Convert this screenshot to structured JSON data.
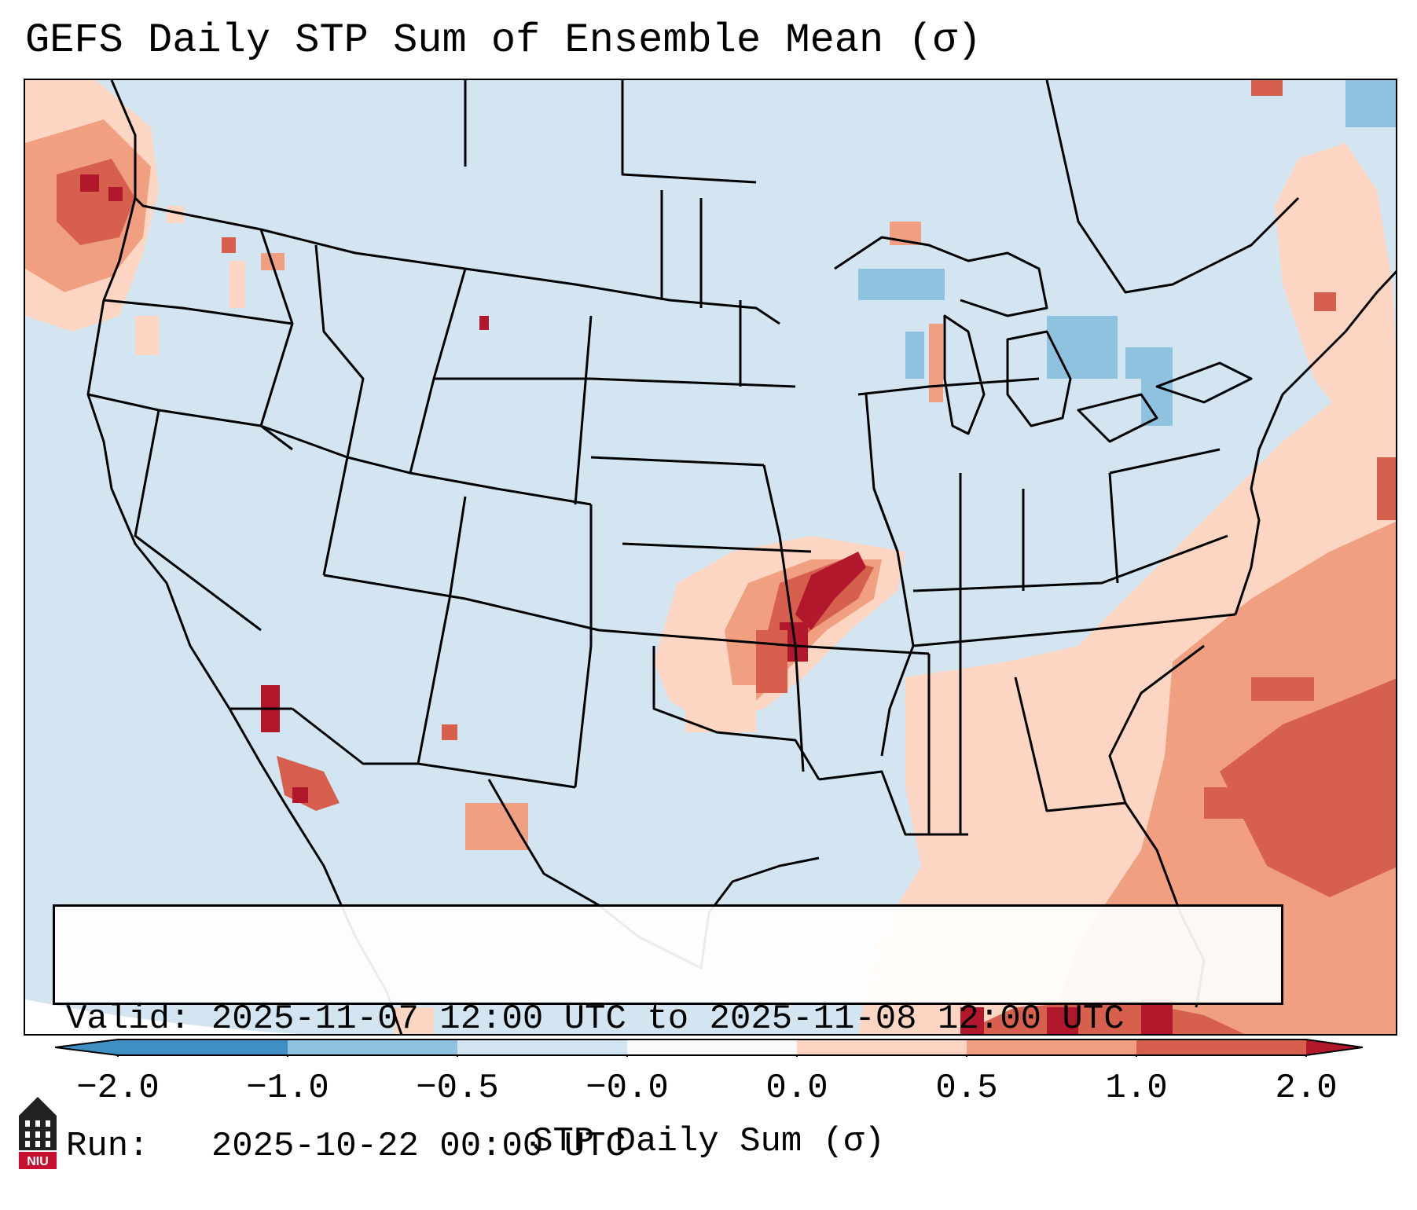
{
  "title": "GEFS Daily STP Sum of Ensemble Mean (σ)",
  "info": {
    "valid_label": "Valid:",
    "valid_value": "2025-11-07 12:00 UTC to 2025-11-08 12:00 UTC",
    "run_label": "Run:",
    "run_value": "2025-10-22 00:00 UTC"
  },
  "colorbar": {
    "label": "STP Daily Sum (σ)",
    "ticks": [
      "−2.0",
      "−1.0",
      "−0.5",
      "−0.0",
      "0.0",
      "0.5",
      "1.0",
      "2.0"
    ],
    "colors": [
      "#3f8fc4",
      "#8fc2de",
      "#d2e5f0",
      "#f9f9f9",
      "#fcd6c2",
      "#f0a081",
      "#d6604d",
      "#b2182b"
    ]
  },
  "logo": {
    "text": "NIU",
    "color": "#c8102e"
  },
  "map": {
    "region": "Contiguous United States",
    "background_color": "#d2e5f0",
    "highlight_color": "#b2182b"
  }
}
